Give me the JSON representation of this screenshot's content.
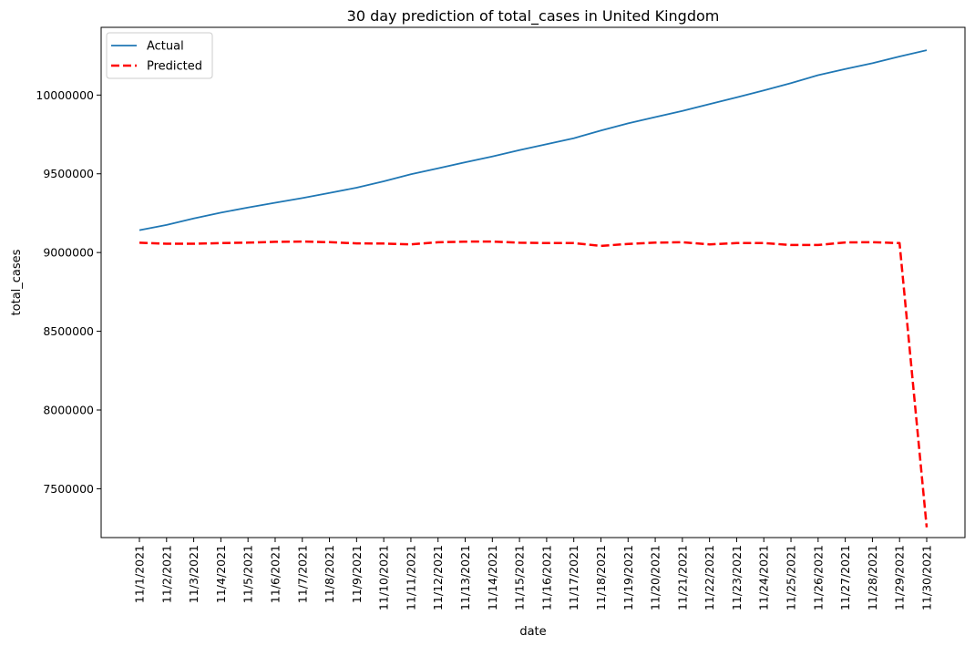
{
  "chart_data": {
    "type": "line",
    "title": "30 day prediction of total_cases in United Kingdom",
    "xlabel": "date",
    "ylabel": "total_cases",
    "x": [
      "11/1/2021",
      "11/2/2021",
      "11/3/2021",
      "11/4/2021",
      "11/5/2021",
      "11/6/2021",
      "11/7/2021",
      "11/8/2021",
      "11/9/2021",
      "11/10/2021",
      "11/11/2021",
      "11/12/2021",
      "11/13/2021",
      "11/14/2021",
      "11/15/2021",
      "11/16/2021",
      "11/17/2021",
      "11/18/2021",
      "11/19/2021",
      "11/20/2021",
      "11/21/2021",
      "11/22/2021",
      "11/23/2021",
      "11/24/2021",
      "11/25/2021",
      "11/26/2021",
      "11/27/2021",
      "11/28/2021",
      "11/29/2021",
      "11/30/2021"
    ],
    "ylim": [
      7190000,
      10430000
    ],
    "yticks": [
      7500000,
      8000000,
      8500000,
      9000000,
      9500000,
      10000000
    ],
    "ytick_labels": [
      "7500000",
      "8000000",
      "8500000",
      "9000000",
      "9500000",
      "10000000"
    ],
    "series": [
      {
        "name": "Actual",
        "color": "#1f77b4",
        "style": "solid",
        "values": [
          9142000,
          9175000,
          9216000,
          9253000,
          9286000,
          9316000,
          9346000,
          9378000,
          9412000,
          9452000,
          9497000,
          9535000,
          9573000,
          9610000,
          9650000,
          9688000,
          9726000,
          9775000,
          9820000,
          9860000,
          9899000,
          9943000,
          9985000,
          10029000,
          10076000,
          10126000,
          10165000,
          10202000,
          10245000,
          10285000
        ]
      },
      {
        "name": "Predicted",
        "color": "#ff0000",
        "style": "dashed",
        "values": [
          9062000,
          9056000,
          9056000,
          9060000,
          9063000,
          9068000,
          9070000,
          9066000,
          9058000,
          9057000,
          9052000,
          9065000,
          9069000,
          9070000,
          9062000,
          9060000,
          9060000,
          9042000,
          9055000,
          9063000,
          9065000,
          9052000,
          9060000,
          9060000,
          9048000,
          9048000,
          9064000,
          9066000,
          9060000,
          7255000
        ]
      }
    ],
    "legend_position": "top-left",
    "grid": false
  }
}
